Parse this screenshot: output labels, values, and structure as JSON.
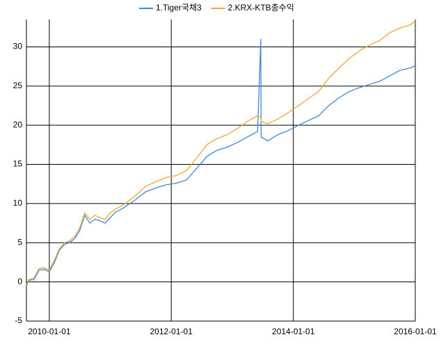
{
  "chart_data": {
    "type": "line",
    "x": [
      "2009-08-17",
      "2009-09-01",
      "2009-10-01",
      "2009-11-01",
      "2009-12-01",
      "2010-01-01",
      "2010-02-01",
      "2010-03-01",
      "2010-04-01",
      "2010-05-01",
      "2010-06-01",
      "2010-07-01",
      "2010-08-01",
      "2010-09-01",
      "2010-10-01",
      "2010-11-01",
      "2010-12-01",
      "2011-01-01",
      "2011-02-01",
      "2011-03-01",
      "2011-04-01",
      "2011-06-01",
      "2011-08-01",
      "2011-10-01",
      "2011-12-01",
      "2012-02-01",
      "2012-04-01",
      "2012-06-01",
      "2012-08-01",
      "2012-10-01",
      "2012-12-01",
      "2013-02-01",
      "2013-04-01",
      "2013-06-01",
      "2013-06-20",
      "2013-06-22",
      "2013-08-01",
      "2013-10-01",
      "2013-12-01",
      "2014-02-01",
      "2014-04-01",
      "2014-06-01",
      "2014-08-01",
      "2014-10-01",
      "2014-12-01",
      "2015-02-01",
      "2015-04-01",
      "2015-06-01",
      "2015-08-01",
      "2015-10-01",
      "2015-12-01",
      "2016-01-01"
    ],
    "series": [
      {
        "name": "1.Tiger국채3",
        "color": "#3f87d9",
        "values": [
          -0.5,
          0.2,
          0.3,
          1.5,
          1.6,
          1.3,
          2.5,
          4.0,
          4.8,
          5.0,
          5.5,
          6.5,
          8.5,
          7.5,
          8.0,
          7.8,
          7.5,
          8.2,
          8.9,
          9.2,
          9.6,
          10.5,
          11.5,
          12.0,
          12.4,
          12.6,
          13.0,
          14.5,
          16.0,
          16.8,
          17.2,
          17.8,
          18.5,
          19.2,
          31.0,
          18.5,
          18.0,
          18.8,
          19.3,
          20.0,
          20.6,
          21.2,
          22.5,
          23.5,
          24.3,
          24.8,
          25.2,
          25.6,
          26.3,
          27.0,
          27.3,
          27.6
        ]
      },
      {
        "name": "2.KRX-KTB총수익",
        "color": "#f2a72e",
        "values": [
          -0.3,
          0.3,
          0.5,
          1.7,
          1.8,
          1.5,
          2.8,
          4.2,
          5.0,
          5.2,
          5.8,
          6.8,
          8.8,
          8.0,
          8.5,
          8.2,
          8.0,
          8.8,
          9.3,
          9.6,
          10.0,
          11.0,
          12.2,
          12.8,
          13.3,
          13.6,
          14.2,
          15.8,
          17.5,
          18.3,
          18.8,
          19.6,
          20.5,
          21.2,
          21.0,
          20.5,
          20.2,
          20.8,
          21.6,
          22.5,
          23.4,
          24.3,
          26.0,
          27.3,
          28.5,
          29.5,
          30.2,
          30.8,
          31.8,
          32.4,
          32.8,
          33.3
        ]
      }
    ],
    "xlim": [
      "2009-08-17",
      "2016-01-01"
    ],
    "xticks": [
      "2010-01-01",
      "2012-01-01",
      "2014-01-01",
      "2016-01-01"
    ],
    "ylim": [
      -5,
      33.5
    ],
    "yticks": [
      -5,
      0,
      5,
      10,
      15,
      20,
      25,
      30
    ],
    "grid": true,
    "legend": "top"
  }
}
